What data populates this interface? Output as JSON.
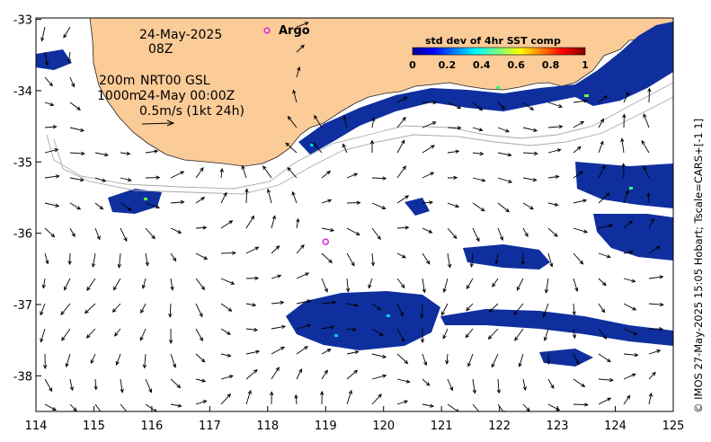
{
  "map": {
    "x_ticks": [
      "114",
      "115",
      "116",
      "117",
      "118",
      "119",
      "120",
      "121",
      "122",
      "123",
      "124",
      "125"
    ],
    "y_ticks": [
      "-33",
      "-34",
      "-35",
      "-36",
      "-37",
      "-38"
    ],
    "annotations": {
      "date": "24-May-2025",
      "hour": "08Z",
      "depth_200": "200m",
      "depth_1000": "1000m",
      "product": "NRT00 GSL",
      "product_time": "24-May 00:00Z",
      "scale": "0.5m/s (1kt 24h)"
    },
    "colorbar": {
      "title": "std dev of 4hr SST comp",
      "labels": [
        "0",
        "0.2",
        "0.4",
        "0.6",
        "0.8",
        "1"
      ]
    },
    "argo": {
      "label": "Argo",
      "lon": 119.0,
      "lat": -36.12
    },
    "credit": "© IMOS 27-May-2025 15:05 Hobart; Tscale=CARS+[-1 1]",
    "colors": {
      "land": "#fbcb98",
      "sst": "#0f2f9e",
      "argo": "#e020e0"
    }
  }
}
